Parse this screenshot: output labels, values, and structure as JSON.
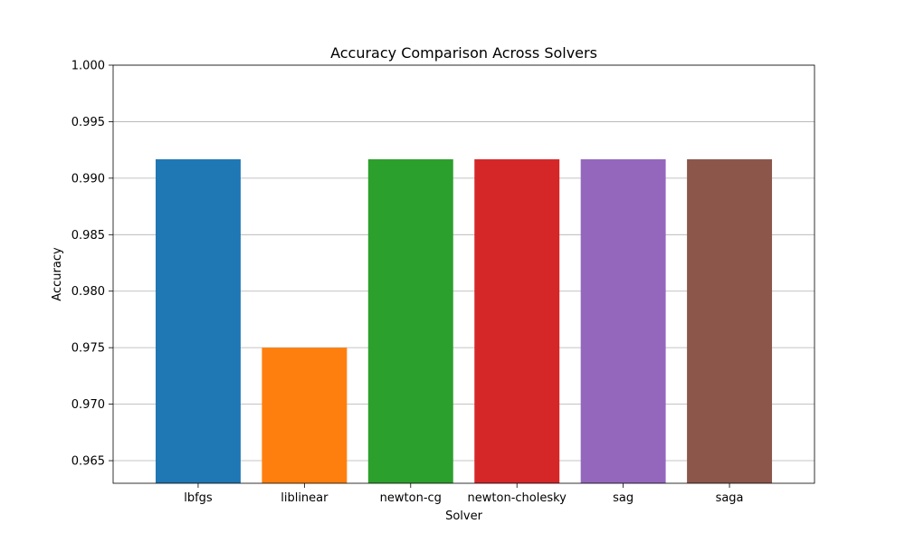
{
  "chart_data": {
    "type": "bar",
    "title": "Accuracy Comparison Across Solvers",
    "xlabel": "Solver",
    "ylabel": "Accuracy",
    "categories": [
      "lbfgs",
      "liblinear",
      "newton-cg",
      "newton-cholesky",
      "sag",
      "saga"
    ],
    "values": [
      0.99167,
      0.975,
      0.99167,
      0.99167,
      0.99167,
      0.99167
    ],
    "colors": [
      "#1f77b4",
      "#ff7f0e",
      "#2ca02c",
      "#d62728",
      "#9467bd",
      "#8c564b"
    ],
    "ylim": [
      0.963,
      1.0
    ],
    "yticks": [
      0.965,
      0.97,
      0.975,
      0.98,
      0.985,
      0.99,
      0.995,
      1.0
    ],
    "ytick_labels": [
      "0.965",
      "0.970",
      "0.975",
      "0.980",
      "0.985",
      "0.990",
      "0.995",
      "1.000"
    ],
    "grid": "y",
    "legend": "none"
  }
}
